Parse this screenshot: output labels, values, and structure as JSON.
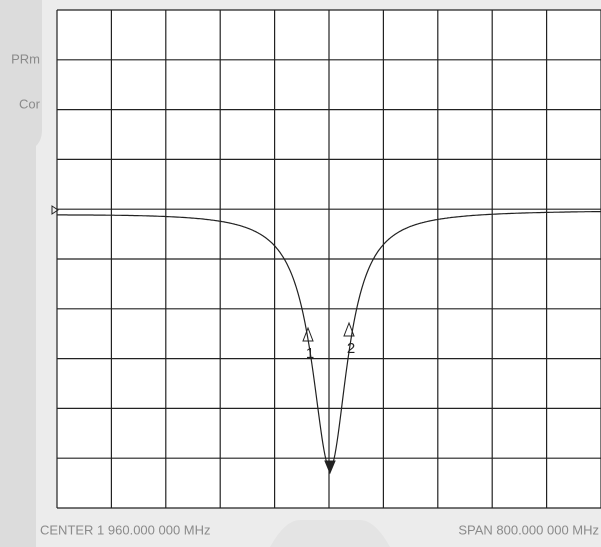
{
  "side_panel": {
    "labels": [
      "PRm",
      "Cor"
    ]
  },
  "markers": [
    {
      "label": "1"
    },
    {
      "label": "2"
    }
  ],
  "footer": {
    "center": "CENTER 1 960.000 000 MHz",
    "span": "SPAN 800.000 000 MHz"
  }
}
